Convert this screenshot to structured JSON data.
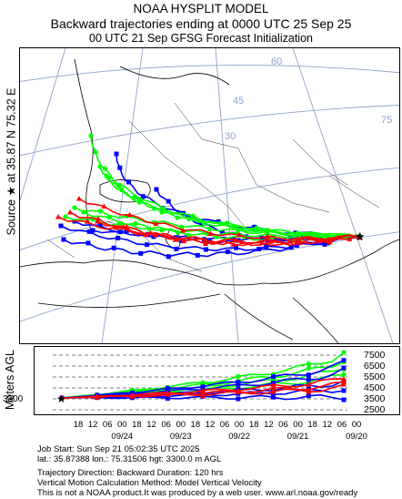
{
  "title": {
    "line1": "NOAA HYSPLIT MODEL",
    "line2": "Backward trajectories ending at 0000 UTC 25 Sep 25",
    "line3": "00 UTC 21 Sep    GFSG  Forecast Initialization"
  },
  "source_label": "Source ★ at   35.87 N   75.32 E",
  "map": {
    "graticule_labels": [
      "60",
      "45",
      "30",
      "75"
    ],
    "source_marker": "star",
    "series_colors": {
      "red": "#ff0000",
      "blue": "#0000ff",
      "green": "#00ff00"
    }
  },
  "vertical_chart": {
    "ylabel": "Meters AGL",
    "source_height_label": "3300",
    "height_ticks": [
      "7500",
      "6500",
      "5500",
      "4500",
      "3500",
      "2500"
    ],
    "time_tick_labels": [
      "18",
      "12",
      "06",
      "00",
      "18",
      "12",
      "06",
      "00",
      "18",
      "12",
      "06",
      "00",
      "18",
      "12",
      "06",
      "00",
      "18",
      "12",
      "06",
      "00"
    ],
    "date_labels": [
      "09/24",
      "09/23",
      "09/22",
      "09/21",
      "09/20"
    ]
  },
  "info": {
    "line1": "Job Start: Sun Sep 21 05:02:35 UTC 2025",
    "line2": "lat.: 35.87388   lon.: 75.31506   hgt: 3300.0 m AGL",
    "line3": "Trajectory Direction: Backward        Duration: 120 hrs",
    "line4": "Vertical Motion Calculation Method: Model Vertical Velocity",
    "line5": "This is not a NOAA product.It was produced by a web user. www.arl.noaa.gov/ready"
  }
}
